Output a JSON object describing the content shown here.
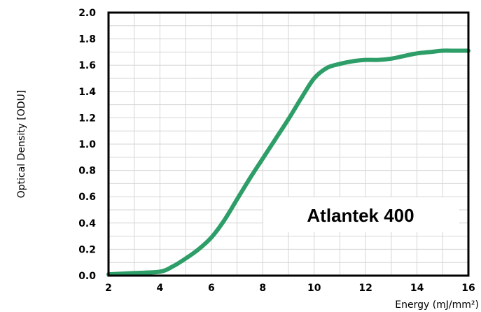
{
  "chart_data": {
    "type": "line",
    "title": "",
    "xlabel": "Energy (mJ/mm²)",
    "ylabel": "Optical Density [ODU]",
    "xlim": [
      2,
      16
    ],
    "ylim": [
      0,
      2.0
    ],
    "x_ticks": [
      "2",
      "4",
      "6",
      "8",
      "10",
      "12",
      "14",
      "16"
    ],
    "y_ticks": [
      "0.0",
      "0.2",
      "0.4",
      "0.6",
      "0.8",
      "1.0",
      "1.2",
      "1.4",
      "1.6",
      "1.8",
      "2.0"
    ],
    "grid": true,
    "annotation": "Atlantek  400",
    "series": [
      {
        "color": "#2e9e68",
        "x": [
          2,
          3,
          4,
          4.5,
          5,
          5.5,
          6,
          6.5,
          7,
          7.5,
          8,
          8.5,
          9,
          9.5,
          10,
          10.5,
          11,
          11.5,
          12,
          12.5,
          13,
          13.5,
          14,
          14.5,
          15,
          15.5,
          16
        ],
        "y": [
          0.01,
          0.02,
          0.03,
          0.07,
          0.13,
          0.2,
          0.29,
          0.42,
          0.58,
          0.74,
          0.89,
          1.04,
          1.19,
          1.35,
          1.5,
          1.58,
          1.61,
          1.63,
          1.64,
          1.64,
          1.65,
          1.67,
          1.69,
          1.7,
          1.71,
          1.71,
          1.71
        ]
      }
    ]
  }
}
